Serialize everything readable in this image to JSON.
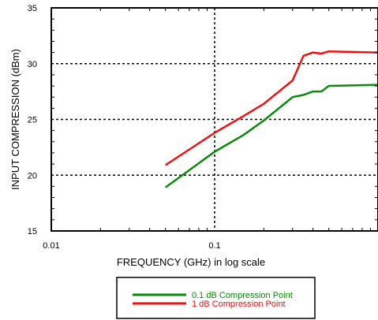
{
  "chart_data": {
    "type": "line",
    "title": "",
    "xlabel": "FREQUENCY (GHz) in log scale",
    "ylabel": "INPUT COMPRESSION (dBm)",
    "x_scale": "log",
    "xlim": [
      0.01,
      1
    ],
    "ylim": [
      15,
      35
    ],
    "x_ticks": [
      {
        "value": 0.01,
        "label": "0.01"
      },
      {
        "value": 0.1,
        "label": "0.1"
      }
    ],
    "y_ticks": [
      {
        "value": 15,
        "label": "15"
      },
      {
        "value": 20,
        "label": "20"
      },
      {
        "value": 25,
        "label": "25"
      },
      {
        "value": 30,
        "label": "30"
      },
      {
        "value": 35,
        "label": "35"
      }
    ],
    "grid": true,
    "legend_position": "bottom-center",
    "series": [
      {
        "name": "0.1 dB Compression Point",
        "color": "#0a8a0a",
        "x": [
          0.05,
          0.1,
          0.15,
          0.2,
          0.3,
          0.35,
          0.4,
          0.45,
          0.5,
          1.0
        ],
        "y": [
          18.9,
          22.1,
          23.6,
          24.9,
          27.0,
          27.2,
          27.5,
          27.5,
          28.0,
          28.1
        ]
      },
      {
        "name": "1 dB Compression Point",
        "color": "#ee1111",
        "x": [
          0.05,
          0.1,
          0.15,
          0.2,
          0.3,
          0.35,
          0.4,
          0.45,
          0.5,
          1.0
        ],
        "y": [
          20.9,
          23.8,
          25.3,
          26.4,
          28.5,
          30.7,
          31.0,
          30.9,
          31.1,
          31.0
        ]
      }
    ]
  }
}
